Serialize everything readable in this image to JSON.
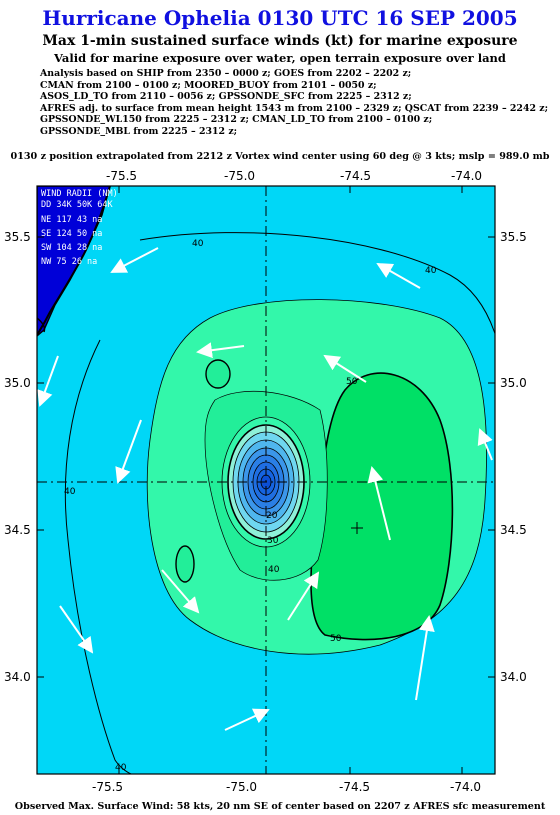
{
  "title": "Hurricane Ophelia 0130 UTC 16 SEP 2005",
  "subtitle": "Max 1-min sustained surface winds (kt) for marine exposure",
  "subtitle2": "Valid for marine exposure over water, open terrain exposure over land",
  "analysis_lines": [
    "Analysis based on  SHIP from 2350 – 0000 z;  GOES from 2202 – 2202 z;",
    "CMAN from 2100 – 0100 z;  MOORED_BUOY from 2101 – 0050 z;",
    "ASOS_LD_TO from 2110 – 0056 z;  GPSSONDE_SFC from 2225 – 2312 z;",
    "AFRES adj. to surface from mean height 1543 m from 2100 – 2329 z;  QSCAT from 2239 – 2242 z;",
    "GPSSONDE_WL150 from 2225 – 2312 z;  CMAN_LD_TO from 2100 – 0100 z;",
    "GPSSONDE_MBL from 2225 – 2312 z;"
  ],
  "position_line": "0130 z position extrapolated from 2212 z Vortex wind center using 60 deg @ 3 kts; mslp = 989.0 mb",
  "footer": "Observed Max. Surface Wind: 58 kts, 20 nm SE of center based on 2207 z AFRES sfc measurement",
  "map": {
    "lon_ticks": [
      "-75.5",
      "-75.0",
      "-74.5",
      "-74.0"
    ],
    "lat_ticks": [
      "35.5",
      "35.0",
      "34.5",
      "34.0"
    ],
    "contour_labels": [
      "40",
      "40",
      "50",
      "40",
      "50",
      "20",
      "30",
      "40",
      "40"
    ],
    "legend": {
      "header1": "WIND RADII (NM)",
      "header2": "DD 34K 50K 64K",
      "rows": [
        "NE 117  43  na",
        "SE 124  50  na",
        "SW 104  28  na",
        "NW  75  26  na"
      ]
    }
  },
  "colors": {
    "title": "#1010e0",
    "ocean_cyan": "#00d7f7",
    "green_40": "#33f7aa",
    "green_50": "#00e066",
    "blue_core": "#1563e0",
    "land": "#0000d8"
  }
}
